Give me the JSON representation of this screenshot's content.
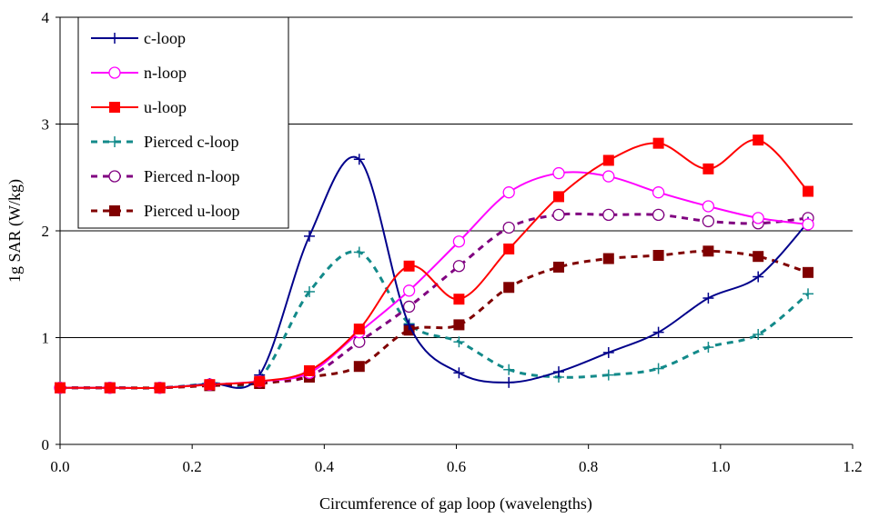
{
  "chart_data": {
    "type": "line",
    "title": "",
    "xlabel": "Circumference of gap loop (wavelengths)",
    "ylabel": "1g SAR (W/kg)",
    "xlim": [
      0,
      1.2
    ],
    "ylim": [
      0,
      4
    ],
    "x_ticks": [
      "0.0",
      "0.2",
      "0.4",
      "0.6",
      "0.8",
      "1.0",
      "1.2"
    ],
    "y_ticks": [
      "0",
      "1",
      "2",
      "3",
      "4"
    ],
    "grid": "horizontal",
    "legend_position": "top-left",
    "x": [
      0.0,
      0.0755,
      0.151,
      0.2265,
      0.302,
      0.3775,
      0.453,
      0.5285,
      0.604,
      0.6795,
      0.755,
      0.8305,
      0.906,
      0.9815,
      1.057,
      1.1325
    ],
    "series": [
      {
        "name": "c-loop",
        "color": "#00008B",
        "dash": "solid",
        "marker": "plus",
        "values": [
          0.53,
          0.53,
          0.53,
          0.57,
          0.65,
          1.95,
          2.67,
          1.12,
          0.67,
          0.58,
          0.68,
          0.86,
          1.05,
          1.37,
          1.57,
          2.08
        ]
      },
      {
        "name": "n-loop",
        "color": "#FF00FF",
        "dash": "solid",
        "marker": "open-circle",
        "values": [
          0.53,
          0.53,
          0.53,
          0.56,
          0.59,
          0.67,
          1.05,
          1.44,
          1.9,
          2.36,
          2.54,
          2.51,
          2.36,
          2.23,
          2.12,
          2.06
        ]
      },
      {
        "name": "u-loop",
        "color": "#FF0000",
        "dash": "solid",
        "marker": "filled-square",
        "values": [
          0.53,
          0.53,
          0.53,
          0.56,
          0.59,
          0.69,
          1.08,
          1.67,
          1.36,
          1.83,
          2.32,
          2.66,
          2.82,
          2.58,
          2.85,
          2.37
        ]
      },
      {
        "name": "Pierced c-loop",
        "color": "#138A8A",
        "dash": "dashed",
        "marker": "plus",
        "values": [
          0.53,
          0.53,
          0.53,
          0.57,
          0.62,
          1.43,
          1.8,
          1.13,
          0.96,
          0.7,
          0.63,
          0.65,
          0.71,
          0.91,
          1.03,
          1.41
        ]
      },
      {
        "name": "Pierced n-loop",
        "color": "#800080",
        "dash": "dashed",
        "marker": "open-circle",
        "values": [
          0.53,
          0.53,
          0.53,
          0.56,
          0.58,
          0.64,
          0.96,
          1.29,
          1.67,
          2.03,
          2.15,
          2.15,
          2.15,
          2.09,
          2.07,
          2.12
        ]
      },
      {
        "name": "Pierced u-loop",
        "color": "#800000",
        "dash": "dashed",
        "marker": "filled-square",
        "values": [
          0.53,
          0.53,
          0.53,
          0.55,
          0.57,
          0.63,
          0.73,
          1.07,
          1.12,
          1.47,
          1.66,
          1.74,
          1.77,
          1.81,
          1.76,
          1.61
        ]
      }
    ]
  }
}
